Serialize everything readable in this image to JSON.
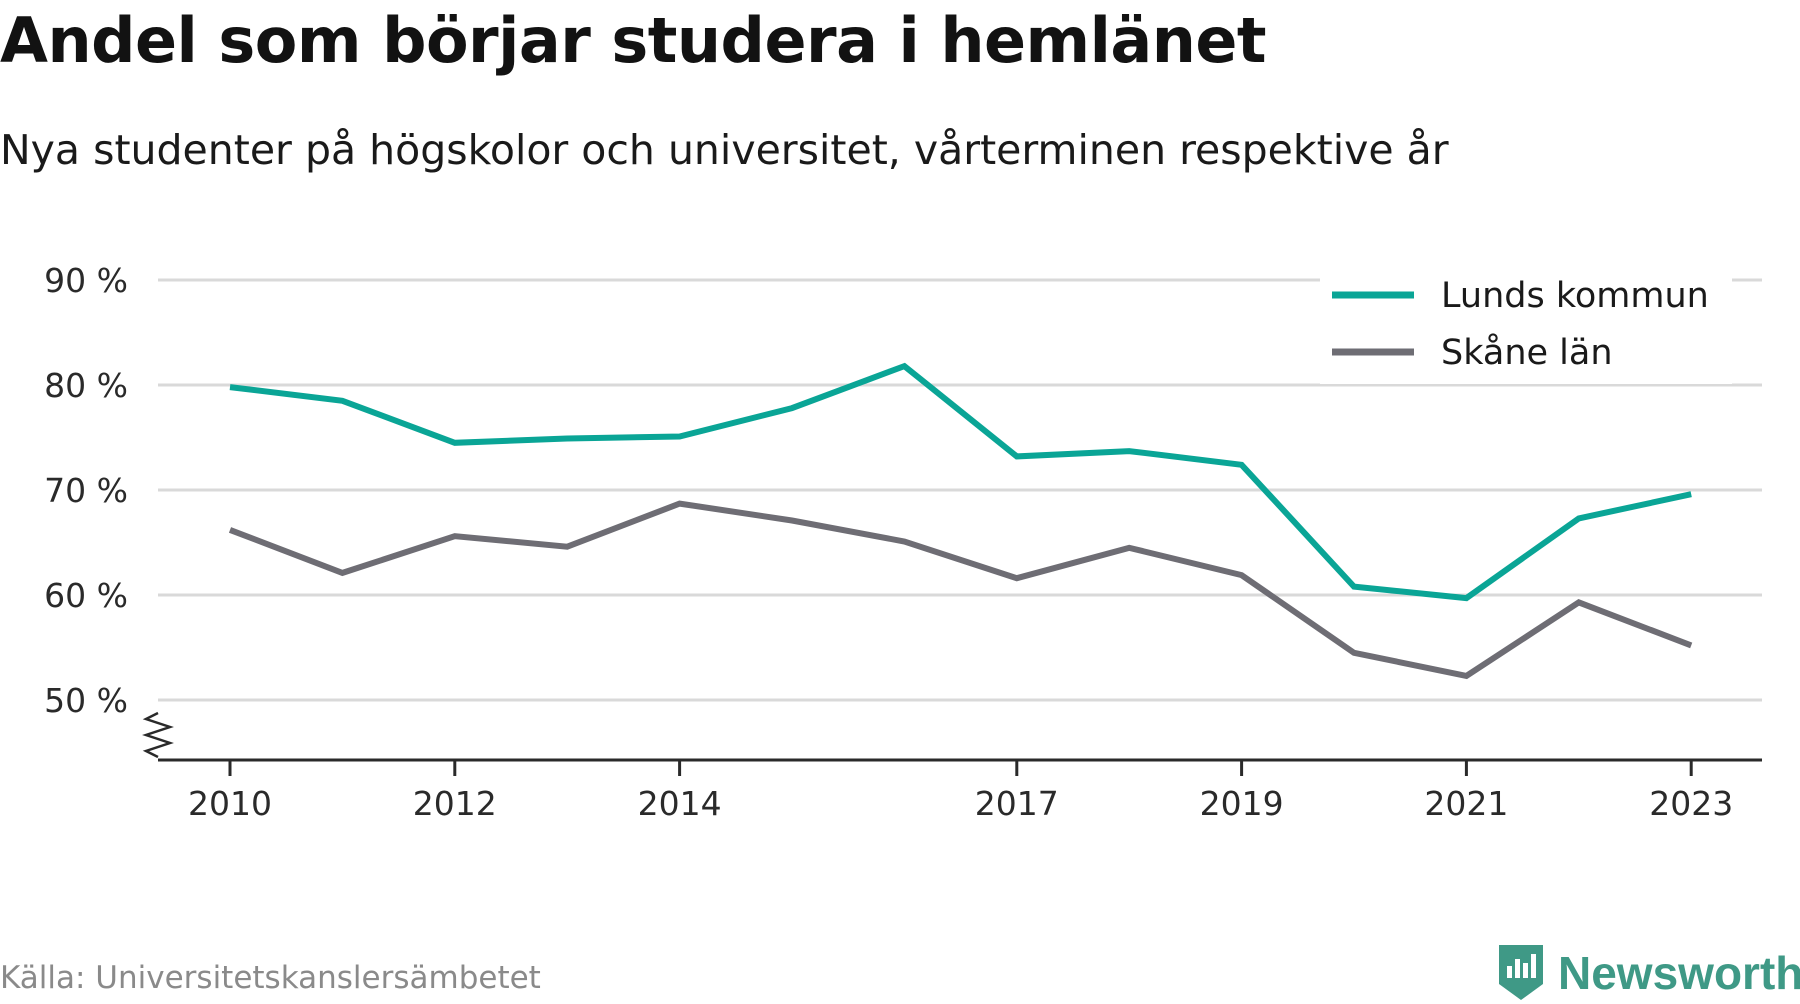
{
  "title": "Andel som börjar studera i hemlänet",
  "subtitle": "Nya studenter på högskolor och universitet, vårterminen respektive år",
  "source": "Källa: Universitetskanslersämbetet",
  "brand": "Newsworthy",
  "colors": {
    "lund": "#0aa596",
    "skane": "#6e6d74",
    "grid": "#d9d9d9",
    "brand": "#3f9986"
  },
  "chart_data": {
    "type": "line",
    "x": [
      2010,
      2011,
      2012,
      2013,
      2014,
      2015,
      2016,
      2017,
      2018,
      2019,
      2020,
      2021,
      2022,
      2023
    ],
    "x_tick_labels": [
      "2010",
      "2012",
      "2014",
      "2017",
      "2019",
      "2021",
      "2023"
    ],
    "y_tick_labels": [
      "90 %",
      "80 %",
      "70 %",
      "60 %",
      "50 %"
    ],
    "y_ticks": [
      90,
      80,
      70,
      60,
      50
    ],
    "ylim": [
      44.3,
      90
    ],
    "y_axis_break": true,
    "grid": true,
    "legend_position": "top-right",
    "series": [
      {
        "name": "Lunds kommun",
        "color": "#0aa596",
        "values": [
          79.8,
          78.5,
          74.5,
          74.9,
          75.1,
          77.8,
          81.8,
          73.2,
          73.7,
          72.4,
          60.8,
          59.7,
          67.3,
          69.6
        ]
      },
      {
        "name": "Skåne län",
        "color": "#6e6d74",
        "values": [
          66.2,
          62.1,
          65.6,
          64.6,
          68.7,
          67.1,
          65.1,
          61.6,
          64.5,
          61.9,
          54.5,
          52.3,
          59.3,
          55.2
        ]
      }
    ]
  }
}
